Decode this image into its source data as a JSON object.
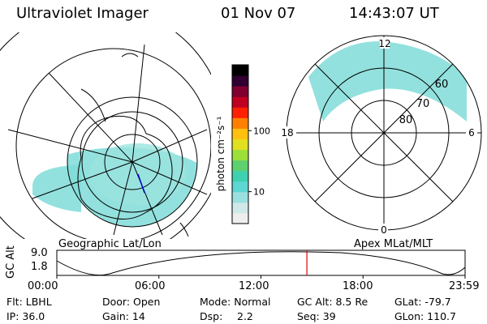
{
  "header": {
    "instrument": "Ultraviolet Imager",
    "date": "01 Nov 07",
    "time": "14:43:07 UT"
  },
  "left_map": {
    "label": "Geographic Lat/Lon"
  },
  "right_map": {
    "label": "Apex MLat/MLT",
    "mlt_labels": {
      "top": "12",
      "bottom": "0",
      "left": "18",
      "right": "6"
    },
    "lat_labels": [
      "60",
      "70",
      "80"
    ]
  },
  "colorbar": {
    "unit_label": "photon cm⁻²s⁻¹",
    "ticks": [
      "100",
      "10"
    ],
    "tick_values": [
      100,
      10
    ],
    "range": [
      3,
      1200
    ],
    "colors": [
      "#eeeeee",
      "#cfe8e8",
      "#9be0e0",
      "#5ed6d2",
      "#3fd0b0",
      "#5fd070",
      "#9be03a",
      "#e0e020",
      "#ffc010",
      "#ff8000",
      "#ff2000",
      "#c00020",
      "#800030",
      "#300030",
      "#000000"
    ]
  },
  "altitude_plot": {
    "axis_label": "GC Alt",
    "y_ticks": [
      "9.0",
      "1.8"
    ],
    "x_ticks": [
      "00:00",
      "06:00",
      "12:00",
      "18:00",
      "23:59"
    ],
    "current_marker_hour": 14.7
  },
  "info": {
    "flt": "Flt: LBHL",
    "door": "Door: Open",
    "mode": "Mode: Normal",
    "gc_alt": "GC Alt: 8.5 Re",
    "glat": "GLat: -79.7",
    "ip": "IP: 36.0",
    "gain": "Gain: 14",
    "dsp_label": "Dsp:",
    "dsp_value": "2.2",
    "seq": "Seq: 39",
    "glon": "GLon: 110.7"
  }
}
